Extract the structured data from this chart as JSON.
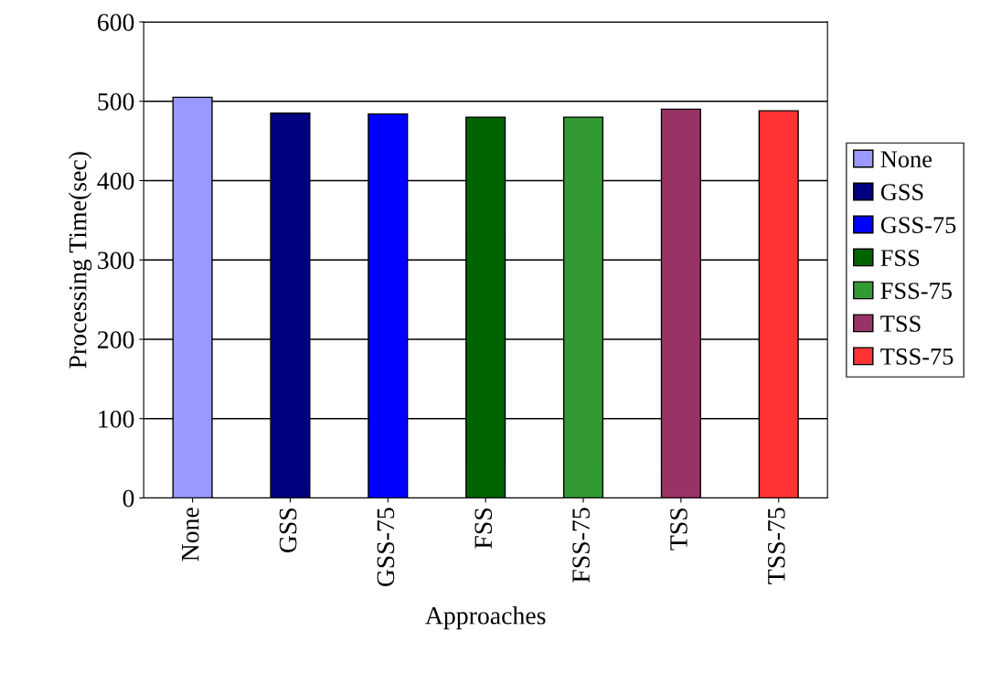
{
  "chart_data": {
    "type": "bar",
    "xlabel": "Approaches",
    "ylabel": "Processing Time(sec)",
    "categories": [
      "None",
      "GSS",
      "GSS-75",
      "FSS",
      "FSS-75",
      "TSS",
      "TSS-75"
    ],
    "series": [
      {
        "name": "None",
        "color": "#9999ff",
        "values": [
          505,
          null,
          null,
          null,
          null,
          null,
          null
        ]
      },
      {
        "name": "GSS",
        "color": "#000080",
        "values": [
          null,
          485,
          null,
          null,
          null,
          null,
          null
        ]
      },
      {
        "name": "GSS-75",
        "color": "#0000ff",
        "values": [
          null,
          null,
          484,
          null,
          null,
          null,
          null
        ]
      },
      {
        "name": "FSS",
        "color": "#006400",
        "values": [
          null,
          null,
          null,
          480,
          null,
          null,
          null
        ]
      },
      {
        "name": "FSS-75",
        "color": "#339933",
        "values": [
          null,
          null,
          null,
          null,
          480,
          null,
          null
        ]
      },
      {
        "name": "TSS",
        "color": "#993366",
        "values": [
          null,
          null,
          null,
          null,
          null,
          490,
          null
        ]
      },
      {
        "name": "TSS-75",
        "color": "#ff3333",
        "values": [
          null,
          null,
          null,
          null,
          null,
          null,
          488
        ]
      }
    ],
    "ylim": [
      0,
      600
    ],
    "yticks": [
      0,
      100,
      200,
      300,
      400,
      500,
      600
    ],
    "grid": "y",
    "legend": "right"
  }
}
